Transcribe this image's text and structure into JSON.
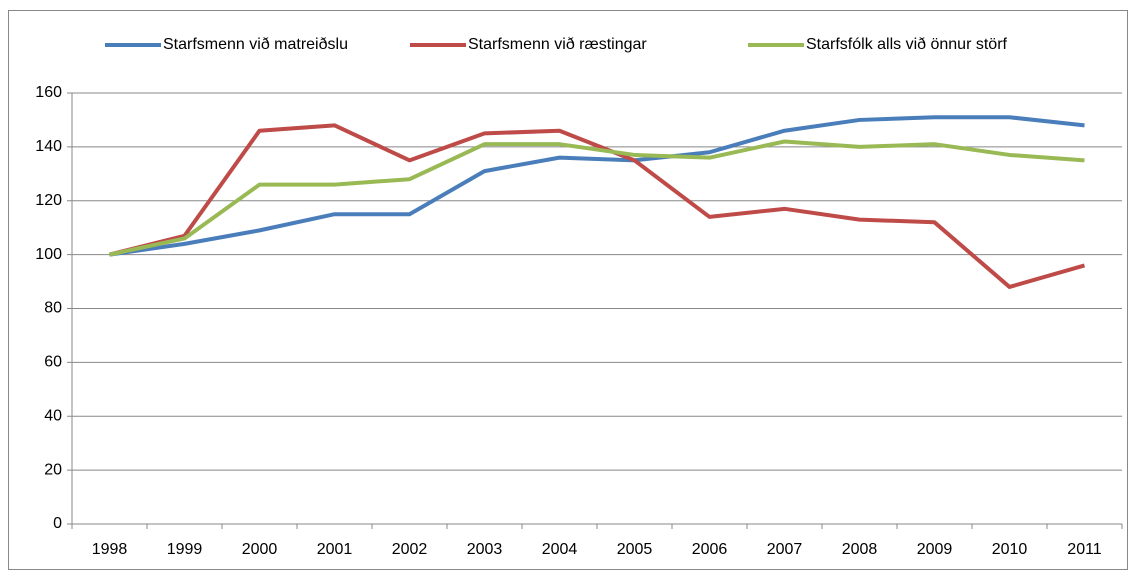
{
  "chart_data": {
    "type": "line",
    "categories": [
      "1998",
      "1999",
      "2000",
      "2001",
      "2002",
      "2003",
      "2004",
      "2005",
      "2006",
      "2007",
      "2008",
      "2009",
      "2010",
      "2011"
    ],
    "series": [
      {
        "name": "Starfsmenn við matreiðslu",
        "color": "#4a7ebb",
        "values": [
          100,
          104,
          109,
          115,
          115,
          131,
          136,
          135,
          138,
          146,
          150,
          151,
          151,
          148
        ]
      },
      {
        "name": "Starfsmenn við ræstingar",
        "color": "#be4b48",
        "values": [
          100,
          107,
          146,
          148,
          135,
          145,
          146,
          135,
          114,
          117,
          113,
          112,
          88,
          96
        ]
      },
      {
        "name": "Starfsfólk alls við önnur störf",
        "color": "#98b954",
        "values": [
          100,
          106,
          126,
          126,
          128,
          141,
          141,
          137,
          136,
          142,
          140,
          141,
          137,
          135
        ]
      }
    ],
    "ylim": [
      0,
      160
    ],
    "yticks": [
      0,
      20,
      40,
      60,
      80,
      100,
      120,
      140,
      160
    ],
    "grid": true,
    "legend": "top"
  }
}
